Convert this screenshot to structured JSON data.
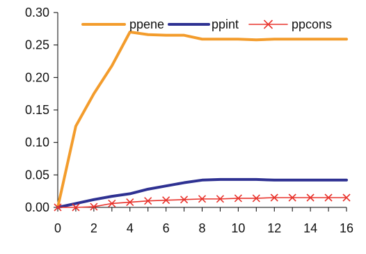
{
  "chart_data": {
    "type": "line",
    "title": "",
    "xlabel": "",
    "ylabel": "",
    "x": [
      0,
      1,
      2,
      3,
      4,
      5,
      6,
      7,
      8,
      9,
      10,
      11,
      12,
      13,
      14,
      15,
      16
    ],
    "xlim": [
      0,
      16
    ],
    "ylim": [
      0,
      0.3
    ],
    "x_ticks": [
      0,
      2,
      4,
      6,
      8,
      10,
      12,
      14,
      16
    ],
    "y_ticks": [
      0.0,
      0.05,
      0.1,
      0.15,
      0.2,
      0.25,
      0.3
    ],
    "y_tick_labels": [
      "0.00",
      "0.05",
      "0.10",
      "0.15",
      "0.20",
      "0.25",
      "0.30"
    ],
    "x_tick_labels": [
      "0",
      "2",
      "4",
      "6",
      "8",
      "10",
      "12",
      "14",
      "16"
    ],
    "grid": false,
    "legend_position": "top",
    "series": [
      {
        "name": "ppene",
        "color": "#F39C2C",
        "marker": "none",
        "values": [
          0.0,
          0.125,
          0.175,
          0.218,
          0.27,
          0.266,
          0.265,
          0.265,
          0.259,
          0.259,
          0.259,
          0.258,
          0.259,
          0.259,
          0.259,
          0.259,
          0.259
        ]
      },
      {
        "name": "ppint",
        "color": "#2E3192",
        "marker": "none",
        "values": [
          0.0,
          0.006,
          0.012,
          0.017,
          0.021,
          0.028,
          0.033,
          0.038,
          0.042,
          0.043,
          0.043,
          0.043,
          0.042,
          0.042,
          0.042,
          0.042,
          0.042
        ]
      },
      {
        "name": "ppcons",
        "color": "#E8322B",
        "marker": "x",
        "values": [
          0.0,
          0.0,
          0.001,
          0.006,
          0.008,
          0.01,
          0.011,
          0.012,
          0.013,
          0.013,
          0.014,
          0.014,
          0.015,
          0.015,
          0.015,
          0.015,
          0.015
        ]
      }
    ]
  }
}
